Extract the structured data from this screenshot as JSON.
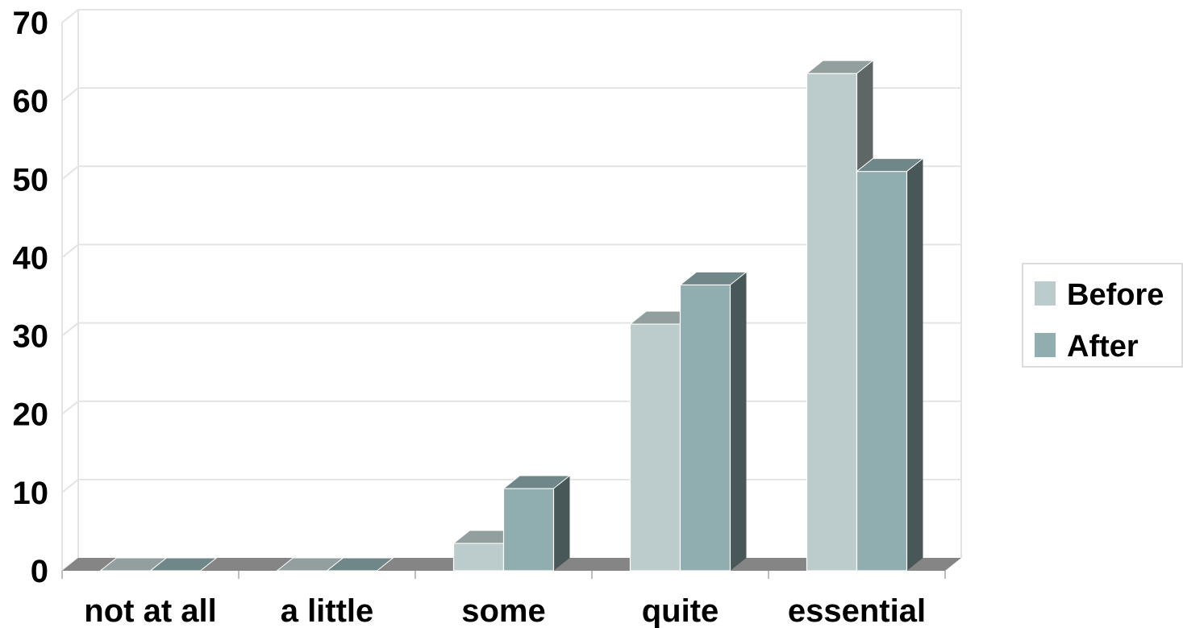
{
  "chart_data": {
    "type": "bar",
    "categories": [
      "not at all",
      "a little",
      "some",
      "quite",
      "essential"
    ],
    "series": [
      {
        "name": "Before",
        "values": [
          0,
          0,
          3.5,
          31.5,
          63.5
        ]
      },
      {
        "name": "After",
        "values": [
          0,
          0,
          10.5,
          36.5,
          51
        ]
      }
    ],
    "ylim": [
      0,
      70
    ],
    "yticks": [
      0,
      10,
      20,
      30,
      40,
      50,
      60,
      70
    ],
    "grid": true,
    "three_d": true,
    "legend_position": "right",
    "colors": {
      "Before": "#bccccc",
      "After": "#90adb0",
      "floor": "#858585",
      "gridline": "#e4e4e4"
    }
  }
}
